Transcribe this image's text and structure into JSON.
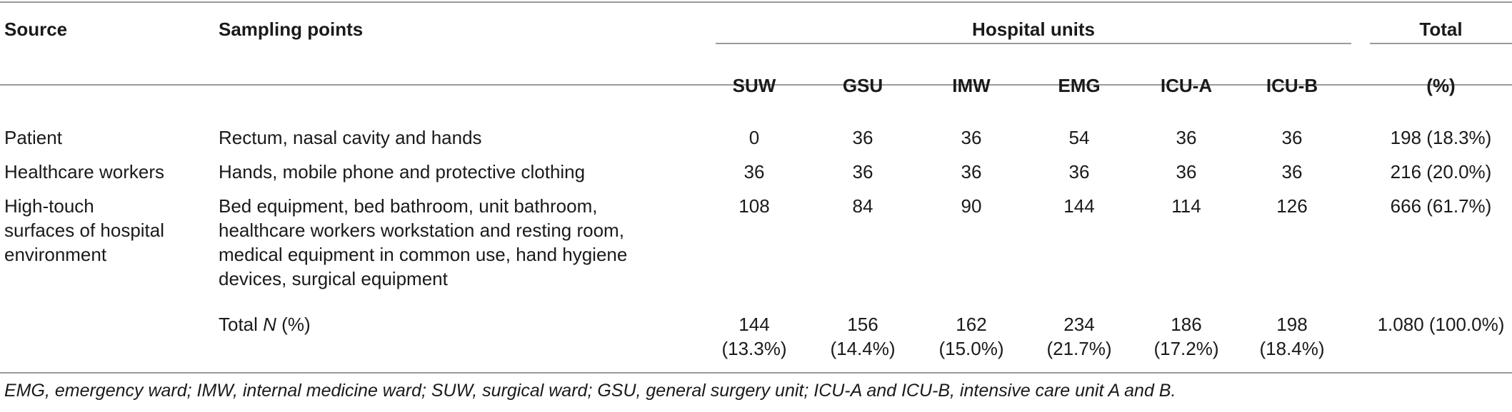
{
  "table": {
    "headers": {
      "source": "Source",
      "sampling_points": "Sampling points",
      "hospital_units": "Hospital units",
      "total": "Total",
      "units": [
        "SUW",
        "GSU",
        "IMW",
        "EMG",
        "ICU-A",
        "ICU-B"
      ],
      "total_unit": "(%)"
    },
    "rows": [
      {
        "source": "Patient",
        "sampling": "Rectum, nasal cavity and hands",
        "values": [
          "0",
          "36",
          "36",
          "54",
          "36",
          "36"
        ],
        "total": "198 (18.3%)"
      },
      {
        "source": "Healthcare workers",
        "sampling": "Hands, mobile phone and protective clothing",
        "values": [
          "36",
          "36",
          "36",
          "36",
          "36",
          "36"
        ],
        "total": "216 (20.0%)"
      },
      {
        "source_lines": [
          "High-touch",
          "surfaces of hospital",
          "environment"
        ],
        "sampling_lines": [
          "Bed equipment, bed bathroom, unit bathroom,",
          "healthcare workers workstation and resting room,",
          "medical equipment in common use, hand hygiene",
          "devices, surgical equipment"
        ],
        "values": [
          "108",
          "84",
          "90",
          "144",
          "114",
          "126"
        ],
        "total": "666 (61.7%)"
      }
    ],
    "total_row": {
      "label_prefix": "Total ",
      "label_n": "N",
      "label_suffix": " (%)",
      "values": [
        {
          "n": "144",
          "pct": "(13.3%)"
        },
        {
          "n": "156",
          "pct": "(14.4%)"
        },
        {
          "n": "162",
          "pct": "(15.0%)"
        },
        {
          "n": "234",
          "pct": "(21.7%)"
        },
        {
          "n": "186",
          "pct": "(17.2%)"
        },
        {
          "n": "198",
          "pct": "(18.4%)"
        }
      ],
      "total": "1.080 (100.0%)"
    }
  },
  "footnote": "EMG, emergency ward; IMW, internal medicine ward; SUW, surgical ward; GSU, general surgery unit; ICU-A and ICU-B, intensive care unit A and B."
}
